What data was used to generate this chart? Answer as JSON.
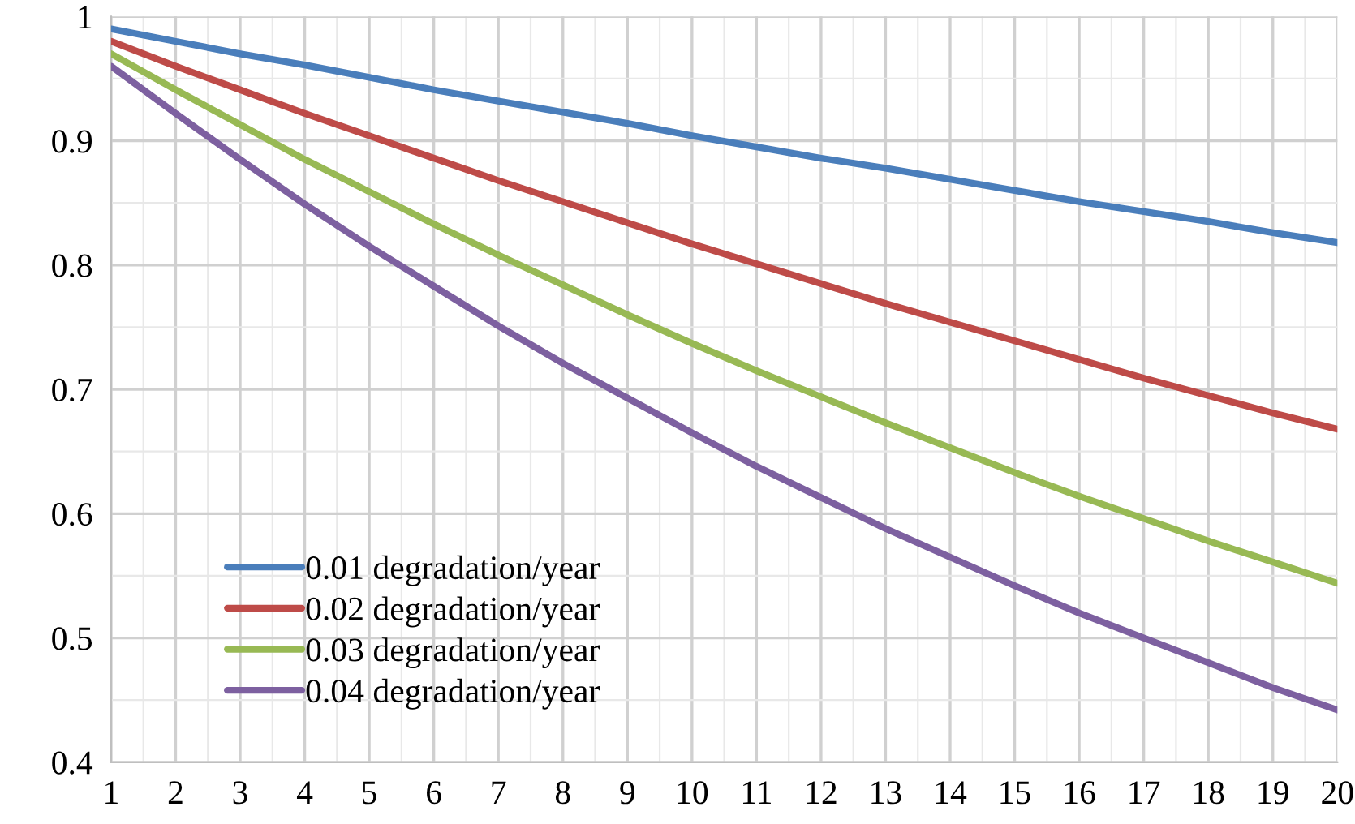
{
  "chart_data": {
    "type": "line",
    "x": [
      1,
      2,
      3,
      4,
      5,
      6,
      7,
      8,
      9,
      10,
      11,
      12,
      13,
      14,
      15,
      16,
      17,
      18,
      19,
      20
    ],
    "series": [
      {
        "name": "0.01 degradation/year",
        "color": "#4a7ebb",
        "values": [
          0.99,
          0.98,
          0.97,
          0.961,
          0.951,
          0.941,
          0.932,
          0.923,
          0.914,
          0.904,
          0.895,
          0.886,
          0.878,
          0.869,
          0.86,
          0.851,
          0.843,
          0.835,
          0.826,
          0.818
        ]
      },
      {
        "name": "0.02 degradation/year",
        "color": "#be4b48",
        "values": [
          0.98,
          0.96,
          0.941,
          0.922,
          0.904,
          0.886,
          0.868,
          0.851,
          0.834,
          0.817,
          0.801,
          0.785,
          0.769,
          0.754,
          0.739,
          0.724,
          0.709,
          0.695,
          0.681,
          0.668
        ]
      },
      {
        "name": "0.03 degradation/year",
        "color": "#98b954",
        "values": [
          0.97,
          0.941,
          0.913,
          0.885,
          0.859,
          0.833,
          0.808,
          0.784,
          0.76,
          0.737,
          0.715,
          0.694,
          0.673,
          0.653,
          0.633,
          0.614,
          0.596,
          0.578,
          0.561,
          0.544
        ]
      },
      {
        "name": "0.04 degradation/year",
        "color": "#7d60a0",
        "values": [
          0.96,
          0.922,
          0.885,
          0.849,
          0.815,
          0.783,
          0.751,
          0.721,
          0.693,
          0.665,
          0.638,
          0.613,
          0.588,
          0.565,
          0.542,
          0.52,
          0.5,
          0.48,
          0.46,
          0.442
        ]
      }
    ],
    "xlim": [
      1,
      20
    ],
    "xticks": [
      1,
      2,
      3,
      4,
      5,
      6,
      7,
      8,
      9,
      10,
      11,
      12,
      13,
      14,
      15,
      16,
      17,
      18,
      19,
      20
    ],
    "ylim": [
      0.4,
      1
    ],
    "yticks": [
      0.4,
      0.5,
      0.6,
      0.7,
      0.8,
      0.9,
      1
    ],
    "grid": true,
    "legend": "bottom left",
    "marker": "none",
    "line_style": "solid"
  }
}
